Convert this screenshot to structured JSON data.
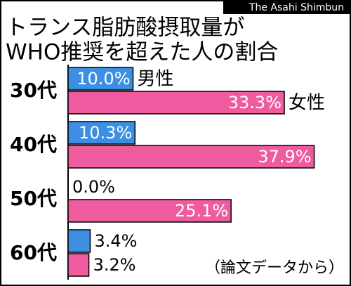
{
  "chart_data": {
    "type": "bar",
    "orientation": "horizontal",
    "title": [
      "トランス脂肪酸摂取量が",
      "WHO推奨を超えた人の割合"
    ],
    "source": "The Asahi Shimbun",
    "note": "（論文データから）",
    "categories": [
      "30代",
      "40代",
      "50代",
      "60代"
    ],
    "series": [
      {
        "name": "男性",
        "color": "#3d8fe3",
        "values": [
          10.0,
          10.3,
          0.0,
          3.4
        ],
        "value_labels": [
          "10.0%",
          "10.3%",
          "0.0%",
          "3.4%"
        ]
      },
      {
        "name": "女性",
        "color": "#ee5b9e",
        "values": [
          33.3,
          37.9,
          25.1,
          3.2
        ],
        "value_labels": [
          "33.3%",
          "37.9%",
          "25.1%",
          "3.2%"
        ]
      }
    ]
  }
}
